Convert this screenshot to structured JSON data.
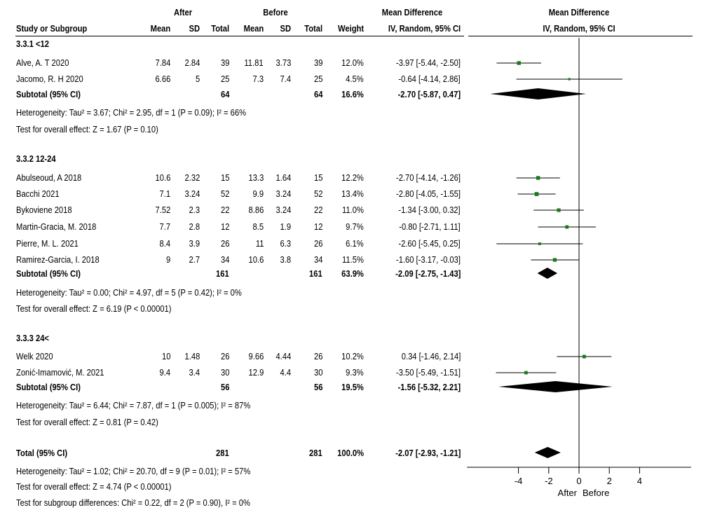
{
  "header": {
    "group_after": "After",
    "group_before": "Before",
    "group_md": "Mean Difference",
    "col_study": "Study or Subgroup",
    "col_mean_after": "Mean",
    "col_sd_after": "SD",
    "col_total_after": "Total",
    "col_mean_before": "Mean",
    "col_sd_before": "SD",
    "col_total_before": "Total",
    "col_weight": "Weight",
    "col_method": "IV, Random, 95% CI",
    "plot_title": "Mean Difference",
    "plot_method": "IV, Random, 95% CI"
  },
  "subgroups": [
    {
      "title": "3.3.1 <12",
      "studies": [
        {
          "name": "Alve, A. T 2020",
          "mean_after": "7.84",
          "sd_after": "2.84",
          "total_after": "39",
          "mean_before": "11.81",
          "sd_before": "3.73",
          "total_before": "39",
          "weight": "12.0%",
          "ci": "-3.97 [-5.44, -2.50]"
        },
        {
          "name": "Jacomo, R. H 2020",
          "mean_after": "6.66",
          "sd_after": "5",
          "total_after": "25",
          "mean_before": "7.3",
          "sd_before": "7.4",
          "total_before": "25",
          "weight": "4.5%",
          "ci": "-0.64 [-4.14, 2.86]"
        }
      ],
      "subtotal": {
        "label": "Subtotal (95% CI)",
        "total_after": "64",
        "total_before": "64",
        "weight": "16.6%",
        "ci": "-2.70 [-5.87, 0.47]"
      },
      "heterogeneity": "Heterogeneity: Tau² = 3.67; Chi² = 2.95, df = 1 (P = 0.09); I² = 66%",
      "overall": "Test for overall effect: Z = 1.67 (P = 0.10)"
    },
    {
      "title": "3.3.2 12-24",
      "studies": [
        {
          "name": "Abulseoud, A 2018",
          "mean_after": "10.6",
          "sd_after": "2.32",
          "total_after": "15",
          "mean_before": "13.3",
          "sd_before": "1.64",
          "total_before": "15",
          "weight": "12.2%",
          "ci": "-2.70 [-4.14, -1.26]"
        },
        {
          "name": "Bacchi 2021",
          "mean_after": "7.1",
          "sd_after": "3.24",
          "total_after": "52",
          "mean_before": "9.9",
          "sd_before": "3.24",
          "total_before": "52",
          "weight": "13.4%",
          "ci": "-2.80 [-4.05, -1.55]"
        },
        {
          "name": "Bykoviene 2018",
          "mean_after": "7.52",
          "sd_after": "2.3",
          "total_after": "22",
          "mean_before": "8.86",
          "sd_before": "3.24",
          "total_before": "22",
          "weight": "11.0%",
          "ci": "-1.34 [-3.00, 0.32]"
        },
        {
          "name": "Martin-Gracia, M. 2018",
          "mean_after": "7.7",
          "sd_after": "2.8",
          "total_after": "12",
          "mean_before": "8.5",
          "sd_before": "1.9",
          "total_before": "12",
          "weight": "9.7%",
          "ci": "-0.80 [-2.71, 1.11]"
        },
        {
          "name": "Pierre, M. L. 2021",
          "mean_after": "8.4",
          "sd_after": "3.9",
          "total_after": "26",
          "mean_before": "11",
          "sd_before": "6.3",
          "total_before": "26",
          "weight": "6.1%",
          "ci": "-2.60 [-5.45, 0.25]"
        },
        {
          "name": "Ramirez-Garcia, I. 2018",
          "mean_after": "9",
          "sd_after": "2.7",
          "total_after": "34",
          "mean_before": "10.6",
          "sd_before": "3.8",
          "total_before": "34",
          "weight": "11.5%",
          "ci": "-1.60 [-3.17, -0.03]"
        }
      ],
      "subtotal": {
        "label": "Subtotal (95% CI)",
        "total_after": "161",
        "total_before": "161",
        "weight": "63.9%",
        "ci": "-2.09 [-2.75, -1.43]"
      },
      "heterogeneity": "Heterogeneity: Tau² = 0.00; Chi² = 4.97, df = 5 (P = 0.42); I² = 0%",
      "overall": "Test for overall effect: Z = 6.19 (P < 0.00001)"
    },
    {
      "title": "3.3.3 24<",
      "studies": [
        {
          "name": "Welk 2020",
          "mean_after": "10",
          "sd_after": "1.48",
          "total_after": "26",
          "mean_before": "9.66",
          "sd_before": "4.44",
          "total_before": "26",
          "weight": "10.2%",
          "ci": "0.34 [-1.46, 2.14]"
        },
        {
          "name": "Zonić-Imamović, M. 2021",
          "mean_after": "9.4",
          "sd_after": "3.4",
          "total_after": "30",
          "mean_before": "12.9",
          "sd_before": "4.4",
          "total_before": "30",
          "weight": "9.3%",
          "ci": "-3.50 [-5.49, -1.51]"
        }
      ],
      "subtotal": {
        "label": "Subtotal (95% CI)",
        "total_after": "56",
        "total_before": "56",
        "weight": "19.5%",
        "ci": "-1.56 [-5.32, 2.21]"
      },
      "heterogeneity": "Heterogeneity: Tau² = 6.44; Chi² = 7.87, df = 1 (P = 0.005); I² = 87%",
      "overall": "Test for overall effect: Z = 0.81 (P = 0.42)"
    }
  ],
  "total": {
    "label": "Total (95% CI)",
    "total_after": "281",
    "total_before": "281",
    "weight": "100.0%",
    "ci": "-2.07 [-2.93, -1.21]",
    "heterogeneity": "Heterogeneity: Tau² = 1.02; Chi² = 20.70, df = 9 (P = 0.01); I² = 57%",
    "overall": "Test for overall effect: Z = 4.74 (P < 0.00001)",
    "subgroup_diff": "Test for subgroup differences: Chi² = 0.22, df = 2 (P = 0.90), I² = 0%"
  },
  "axis": {
    "ticks": [
      -4,
      -2,
      0,
      2,
      4
    ],
    "tick_labels": [
      "-4",
      "-2",
      "0",
      "2",
      "4"
    ],
    "left_label": "After",
    "right_label": "Before",
    "range": [
      -7.4,
      7.4
    ]
  },
  "colors": {
    "marker": "#1a7a1a",
    "line": "#000000",
    "diamond": "#000000"
  },
  "chart_data": {
    "type": "forest",
    "x_unit": "Mean Difference (IV, Random, 95% CI)",
    "xlim": [
      -7.4,
      7.4
    ],
    "studies": [
      {
        "name": "Alve, A. T 2020",
        "subgroup": "3.3.1 <12",
        "md": -3.97,
        "lo": -5.44,
        "hi": -2.5,
        "weight": 12.0
      },
      {
        "name": "Jacomo, R. H 2020",
        "subgroup": "3.3.1 <12",
        "md": -0.64,
        "lo": -4.14,
        "hi": 2.86,
        "weight": 4.5
      },
      {
        "name": "Abulseoud, A 2018",
        "subgroup": "3.3.2 12-24",
        "md": -2.7,
        "lo": -4.14,
        "hi": -1.26,
        "weight": 12.2
      },
      {
        "name": "Bacchi 2021",
        "subgroup": "3.3.2 12-24",
        "md": -2.8,
        "lo": -4.05,
        "hi": -1.55,
        "weight": 13.4
      },
      {
        "name": "Bykoviene 2018",
        "subgroup": "3.3.2 12-24",
        "md": -1.34,
        "lo": -3.0,
        "hi": 0.32,
        "weight": 11.0
      },
      {
        "name": "Martin-Gracia, M. 2018",
        "subgroup": "3.3.2 12-24",
        "md": -0.8,
        "lo": -2.71,
        "hi": 1.11,
        "weight": 9.7
      },
      {
        "name": "Pierre, M. L. 2021",
        "subgroup": "3.3.2 12-24",
        "md": -2.6,
        "lo": -5.45,
        "hi": 0.25,
        "weight": 6.1
      },
      {
        "name": "Ramirez-Garcia, I. 2018",
        "subgroup": "3.3.2 12-24",
        "md": -1.6,
        "lo": -3.17,
        "hi": -0.03,
        "weight": 11.5
      },
      {
        "name": "Welk 2020",
        "subgroup": "3.3.3 24<",
        "md": 0.34,
        "lo": -1.46,
        "hi": 2.14,
        "weight": 10.2
      },
      {
        "name": "Zonić-Imamović, M. 2021",
        "subgroup": "3.3.3 24<",
        "md": -3.5,
        "lo": -5.49,
        "hi": -1.51,
        "weight": 9.3
      }
    ],
    "diamonds": [
      {
        "name": "Subtotal 3.3.1 <12",
        "md": -2.7,
        "lo": -5.87,
        "hi": 0.47
      },
      {
        "name": "Subtotal 3.3.2 12-24",
        "md": -2.09,
        "lo": -2.75,
        "hi": -1.43
      },
      {
        "name": "Subtotal 3.3.3 24<",
        "md": -1.56,
        "lo": -5.32,
        "hi": 2.21
      },
      {
        "name": "Total",
        "md": -2.07,
        "lo": -2.93,
        "hi": -1.21
      }
    ]
  }
}
